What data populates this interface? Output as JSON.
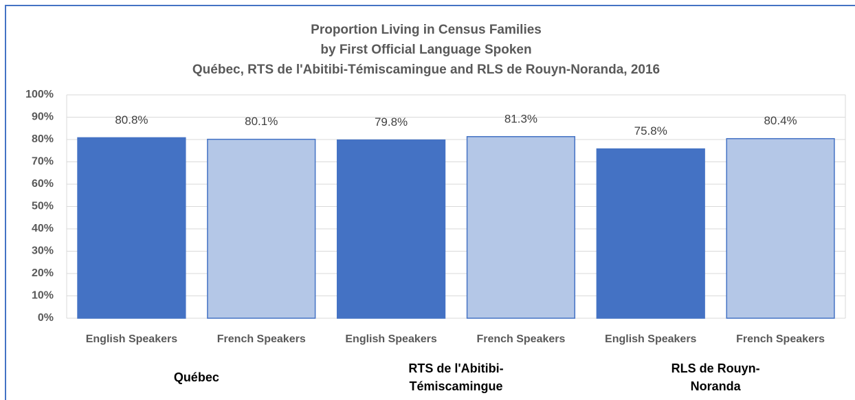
{
  "chart_data": {
    "type": "bar",
    "title": [
      "Proportion Living in Census Families",
      "by First Official Language Spoken",
      "Québec, RTS de l'Abitibi-Témiscamingue and RLS de Rouyn-Noranda, 2016"
    ],
    "categories": [
      "English Speakers",
      "French Speakers",
      "English Speakers",
      "French Speakers",
      "English Speakers",
      "French Speakers"
    ],
    "groups": [
      "Québec",
      "RTS de l'Abitibi-Témiscamingue",
      "RLS de Rouyn-Noranda"
    ],
    "values": [
      80.8,
      80.1,
      79.8,
      81.3,
      75.8,
      80.4
    ],
    "value_labels": [
      "80.8%",
      "80.1%",
      "79.8%",
      "81.3%",
      "75.8%",
      "80.4%"
    ],
    "colors": [
      "#4472c4",
      "#b4c7e7",
      "#4472c4",
      "#b4c7e7",
      "#4472c4",
      "#b4c7e7"
    ],
    "ylim": [
      0,
      100
    ],
    "yticks": [
      {
        "value": 0,
        "label": "0%"
      },
      {
        "value": 10,
        "label": "10%"
      },
      {
        "value": 20,
        "label": "20%"
      },
      {
        "value": 30,
        "label": "30%"
      },
      {
        "value": 40,
        "label": "40%"
      },
      {
        "value": 50,
        "label": "50%"
      },
      {
        "value": 60,
        "label": "60%"
      },
      {
        "value": 70,
        "label": "70%"
      },
      {
        "value": 80,
        "label": "80%"
      },
      {
        "value": 90,
        "label": "90%"
      },
      {
        "value": 100,
        "label": "100%"
      }
    ],
    "grid": true
  }
}
